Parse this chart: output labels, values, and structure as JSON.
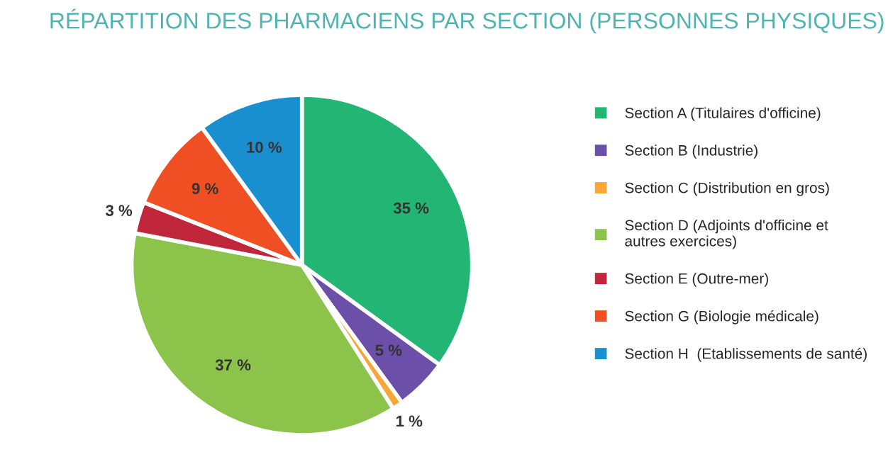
{
  "chart_data": {
    "type": "pie",
    "title": "RÉPARTITION DES PHARMACIENS PAR SECTION (PERSONNES PHYSIQUES)",
    "categories": [
      "Section A (Titulaires d'officine)",
      "Section B (Industrie)",
      "Section C (Distribution en gros)",
      "Section D (Adjoints d'officine et\nautres exercices)",
      "Section E (Outre-mer)",
      "Section G (Biologie médicale)",
      "Section H  (Etablissements de santé)"
    ],
    "values": [
      35,
      5,
      1,
      37,
      3,
      9,
      10
    ],
    "colors": [
      "#22b573",
      "#6b4fa8",
      "#f7a637",
      "#8cc34a",
      "#c1273a",
      "#f04e23",
      "#1a8fd0"
    ],
    "value_labels": [
      "35 %",
      "5 %",
      "1 %",
      "37 %",
      "3 %",
      "9 %",
      "10 %"
    ],
    "legend": "right"
  }
}
